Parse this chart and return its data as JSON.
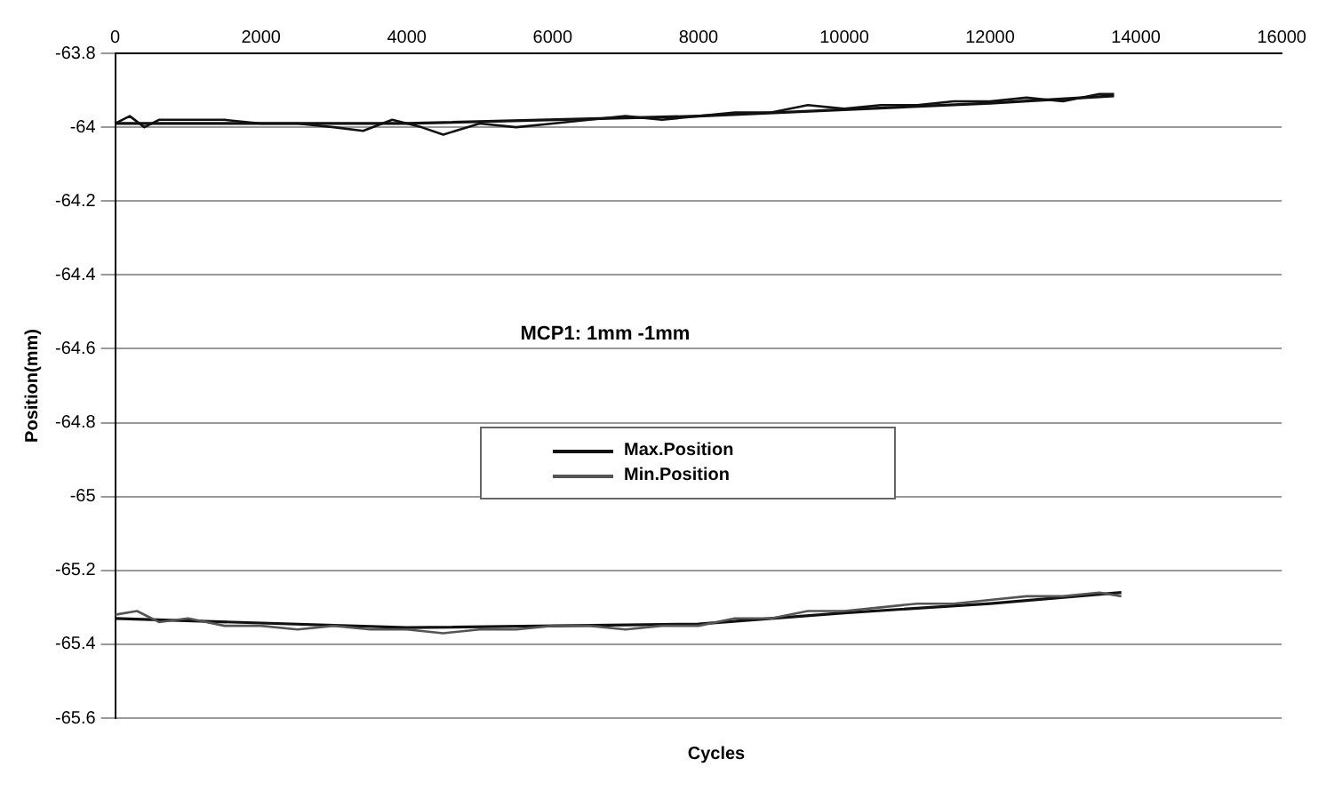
{
  "chart_data": {
    "type": "line",
    "xlabel": "Cycles",
    "ylabel": "Position(mm)",
    "annotations": [
      "MCP1: 1mm -1mm"
    ],
    "xlim": [
      0,
      16000
    ],
    "xticks": [
      0,
      2000,
      4000,
      6000,
      8000,
      10000,
      12000,
      14000,
      16000
    ],
    "ylim": [
      -65.6,
      -63.8
    ],
    "yticks": [
      -65.6,
      -65.4,
      -65.2,
      -65,
      -64.8,
      -64.6,
      -64.4,
      -64.2,
      -64,
      -63.8
    ],
    "grid": "y",
    "legend": "center",
    "marker": "none",
    "series": [
      {
        "name": "Max.Position",
        "color": "#111111",
        "x": [
          0,
          200,
          400,
          600,
          1000,
          1500,
          2000,
          2500,
          3000,
          3400,
          3800,
          4200,
          4500,
          5000,
          5500,
          6000,
          6500,
          7000,
          7500,
          8000,
          8500,
          9000,
          9500,
          10000,
          10500,
          11000,
          11500,
          12000,
          12500,
          13000,
          13500,
          13700
        ],
        "values": [
          -63.99,
          -63.97,
          -64.0,
          -63.98,
          -63.98,
          -63.98,
          -63.99,
          -63.99,
          -64.0,
          -64.01,
          -63.98,
          -64.0,
          -64.02,
          -63.99,
          -64.0,
          -63.99,
          -63.98,
          -63.97,
          -63.98,
          -63.97,
          -63.96,
          -63.96,
          -63.94,
          -63.95,
          -63.94,
          -63.94,
          -63.93,
          -63.93,
          -63.92,
          -63.93,
          -63.91,
          -63.91
        ]
      },
      {
        "name": "Min.Position",
        "color": "#555555",
        "x": [
          0,
          300,
          600,
          1000,
          1500,
          2000,
          2500,
          3000,
          3500,
          4000,
          4500,
          5000,
          5500,
          6000,
          6500,
          7000,
          7500,
          8000,
          8500,
          9000,
          9500,
          10000,
          10500,
          11000,
          11500,
          12000,
          12500,
          13000,
          13500,
          13800
        ],
        "values": [
          -65.32,
          -65.31,
          -65.34,
          -65.33,
          -65.35,
          -65.35,
          -65.36,
          -65.35,
          -65.36,
          -65.36,
          -65.37,
          -65.36,
          -65.36,
          -65.35,
          -65.35,
          -65.36,
          -65.35,
          -65.35,
          -65.33,
          -65.33,
          -65.31,
          -65.31,
          -65.3,
          -65.29,
          -65.29,
          -65.28,
          -65.27,
          -65.27,
          -65.26,
          -65.27
        ]
      },
      {
        "color": "#111111",
        "x": [
          0,
          4000,
          8000,
          12000,
          13700
        ],
        "values": [
          -63.99,
          -63.99,
          -63.97,
          -63.935,
          -63.915
        ]
      },
      {
        "color": "#111111",
        "x": [
          0,
          4000,
          8000,
          10000,
          12000,
          13800
        ],
        "values": [
          -65.33,
          -65.355,
          -65.345,
          -65.315,
          -65.29,
          -65.26
        ]
      }
    ]
  }
}
